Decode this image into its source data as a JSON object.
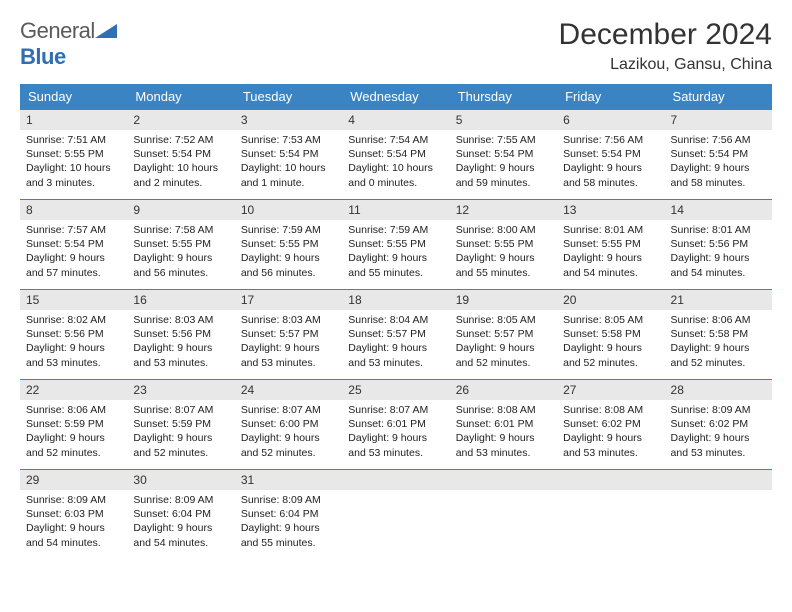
{
  "logo": {
    "text1": "General",
    "text2": "Blue"
  },
  "header": {
    "month_title": "December 2024",
    "location": "Lazikou, Gansu, China"
  },
  "colors": {
    "header_bg": "#3b84c4",
    "header_text": "#ffffff",
    "daynum_bg": "#e8e8e8",
    "row_border": "#3b84c4",
    "body_text": "#222222",
    "logo_gray": "#5a5a5a",
    "logo_blue": "#2f6fb3"
  },
  "weekdays": [
    "Sunday",
    "Monday",
    "Tuesday",
    "Wednesday",
    "Thursday",
    "Friday",
    "Saturday"
  ],
  "weeks": [
    [
      {
        "n": "1",
        "sr": "Sunrise: 7:51 AM",
        "ss": "Sunset: 5:55 PM",
        "d1": "Daylight: 10 hours",
        "d2": "and 3 minutes."
      },
      {
        "n": "2",
        "sr": "Sunrise: 7:52 AM",
        "ss": "Sunset: 5:54 PM",
        "d1": "Daylight: 10 hours",
        "d2": "and 2 minutes."
      },
      {
        "n": "3",
        "sr": "Sunrise: 7:53 AM",
        "ss": "Sunset: 5:54 PM",
        "d1": "Daylight: 10 hours",
        "d2": "and 1 minute."
      },
      {
        "n": "4",
        "sr": "Sunrise: 7:54 AM",
        "ss": "Sunset: 5:54 PM",
        "d1": "Daylight: 10 hours",
        "d2": "and 0 minutes."
      },
      {
        "n": "5",
        "sr": "Sunrise: 7:55 AM",
        "ss": "Sunset: 5:54 PM",
        "d1": "Daylight: 9 hours",
        "d2": "and 59 minutes."
      },
      {
        "n": "6",
        "sr": "Sunrise: 7:56 AM",
        "ss": "Sunset: 5:54 PM",
        "d1": "Daylight: 9 hours",
        "d2": "and 58 minutes."
      },
      {
        "n": "7",
        "sr": "Sunrise: 7:56 AM",
        "ss": "Sunset: 5:54 PM",
        "d1": "Daylight: 9 hours",
        "d2": "and 58 minutes."
      }
    ],
    [
      {
        "n": "8",
        "sr": "Sunrise: 7:57 AM",
        "ss": "Sunset: 5:54 PM",
        "d1": "Daylight: 9 hours",
        "d2": "and 57 minutes."
      },
      {
        "n": "9",
        "sr": "Sunrise: 7:58 AM",
        "ss": "Sunset: 5:55 PM",
        "d1": "Daylight: 9 hours",
        "d2": "and 56 minutes."
      },
      {
        "n": "10",
        "sr": "Sunrise: 7:59 AM",
        "ss": "Sunset: 5:55 PM",
        "d1": "Daylight: 9 hours",
        "d2": "and 56 minutes."
      },
      {
        "n": "11",
        "sr": "Sunrise: 7:59 AM",
        "ss": "Sunset: 5:55 PM",
        "d1": "Daylight: 9 hours",
        "d2": "and 55 minutes."
      },
      {
        "n": "12",
        "sr": "Sunrise: 8:00 AM",
        "ss": "Sunset: 5:55 PM",
        "d1": "Daylight: 9 hours",
        "d2": "and 55 minutes."
      },
      {
        "n": "13",
        "sr": "Sunrise: 8:01 AM",
        "ss": "Sunset: 5:55 PM",
        "d1": "Daylight: 9 hours",
        "d2": "and 54 minutes."
      },
      {
        "n": "14",
        "sr": "Sunrise: 8:01 AM",
        "ss": "Sunset: 5:56 PM",
        "d1": "Daylight: 9 hours",
        "d2": "and 54 minutes."
      }
    ],
    [
      {
        "n": "15",
        "sr": "Sunrise: 8:02 AM",
        "ss": "Sunset: 5:56 PM",
        "d1": "Daylight: 9 hours",
        "d2": "and 53 minutes."
      },
      {
        "n": "16",
        "sr": "Sunrise: 8:03 AM",
        "ss": "Sunset: 5:56 PM",
        "d1": "Daylight: 9 hours",
        "d2": "and 53 minutes."
      },
      {
        "n": "17",
        "sr": "Sunrise: 8:03 AM",
        "ss": "Sunset: 5:57 PM",
        "d1": "Daylight: 9 hours",
        "d2": "and 53 minutes."
      },
      {
        "n": "18",
        "sr": "Sunrise: 8:04 AM",
        "ss": "Sunset: 5:57 PM",
        "d1": "Daylight: 9 hours",
        "d2": "and 53 minutes."
      },
      {
        "n": "19",
        "sr": "Sunrise: 8:05 AM",
        "ss": "Sunset: 5:57 PM",
        "d1": "Daylight: 9 hours",
        "d2": "and 52 minutes."
      },
      {
        "n": "20",
        "sr": "Sunrise: 8:05 AM",
        "ss": "Sunset: 5:58 PM",
        "d1": "Daylight: 9 hours",
        "d2": "and 52 minutes."
      },
      {
        "n": "21",
        "sr": "Sunrise: 8:06 AM",
        "ss": "Sunset: 5:58 PM",
        "d1": "Daylight: 9 hours",
        "d2": "and 52 minutes."
      }
    ],
    [
      {
        "n": "22",
        "sr": "Sunrise: 8:06 AM",
        "ss": "Sunset: 5:59 PM",
        "d1": "Daylight: 9 hours",
        "d2": "and 52 minutes."
      },
      {
        "n": "23",
        "sr": "Sunrise: 8:07 AM",
        "ss": "Sunset: 5:59 PM",
        "d1": "Daylight: 9 hours",
        "d2": "and 52 minutes."
      },
      {
        "n": "24",
        "sr": "Sunrise: 8:07 AM",
        "ss": "Sunset: 6:00 PM",
        "d1": "Daylight: 9 hours",
        "d2": "and 52 minutes."
      },
      {
        "n": "25",
        "sr": "Sunrise: 8:07 AM",
        "ss": "Sunset: 6:01 PM",
        "d1": "Daylight: 9 hours",
        "d2": "and 53 minutes."
      },
      {
        "n": "26",
        "sr": "Sunrise: 8:08 AM",
        "ss": "Sunset: 6:01 PM",
        "d1": "Daylight: 9 hours",
        "d2": "and 53 minutes."
      },
      {
        "n": "27",
        "sr": "Sunrise: 8:08 AM",
        "ss": "Sunset: 6:02 PM",
        "d1": "Daylight: 9 hours",
        "d2": "and 53 minutes."
      },
      {
        "n": "28",
        "sr": "Sunrise: 8:09 AM",
        "ss": "Sunset: 6:02 PM",
        "d1": "Daylight: 9 hours",
        "d2": "and 53 minutes."
      }
    ],
    [
      {
        "n": "29",
        "sr": "Sunrise: 8:09 AM",
        "ss": "Sunset: 6:03 PM",
        "d1": "Daylight: 9 hours",
        "d2": "and 54 minutes."
      },
      {
        "n": "30",
        "sr": "Sunrise: 8:09 AM",
        "ss": "Sunset: 6:04 PM",
        "d1": "Daylight: 9 hours",
        "d2": "and 54 minutes."
      },
      {
        "n": "31",
        "sr": "Sunrise: 8:09 AM",
        "ss": "Sunset: 6:04 PM",
        "d1": "Daylight: 9 hours",
        "d2": "and 55 minutes."
      },
      {
        "empty": true
      },
      {
        "empty": true
      },
      {
        "empty": true
      },
      {
        "empty": true
      }
    ]
  ]
}
